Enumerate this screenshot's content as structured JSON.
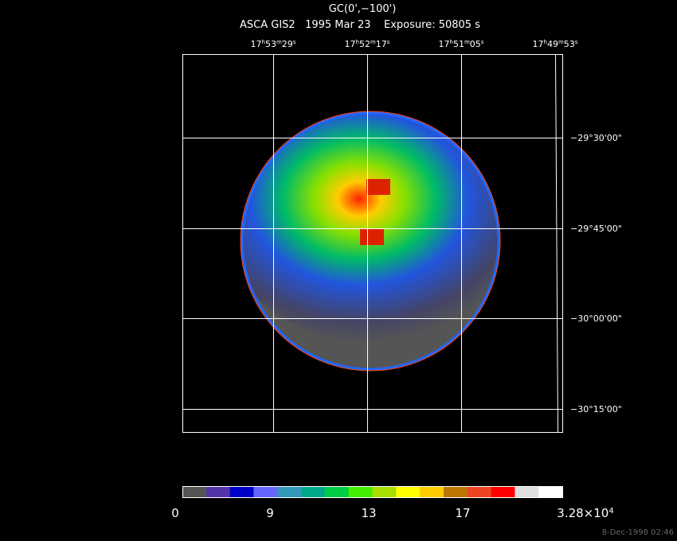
{
  "header": {
    "title": "GC(0',−100')",
    "subtitle": "ASCA GIS2   1995 Mar 23    Exposure: 50805 s"
  },
  "ra_labels": [
    [
      "17",
      "h",
      "53",
      "m",
      "29",
      "s"
    ],
    [
      "17",
      "h",
      "52",
      "m",
      "17",
      "s"
    ],
    [
      "17",
      "h",
      "51",
      "m",
      "05",
      "s"
    ],
    [
      "17",
      "h",
      "49",
      "m",
      "53",
      "s"
    ]
  ],
  "dec_labels": [
    "−29°30'00\"",
    "−29°45'00\"",
    "−30°00'00\"",
    "−30°15'00\""
  ],
  "colorbar": {
    "colors": [
      "#555555",
      "#5533aa",
      "#0000cc",
      "#6666ff",
      "#3399bb",
      "#00aa88",
      "#00cc44",
      "#44ee00",
      "#aadd00",
      "#ffff00",
      "#ffcc00",
      "#bb7700",
      "#ee4422",
      "#ff0000",
      "#e0e0e0",
      "#ffffff"
    ],
    "labels": [
      [
        "0"
      ],
      [
        "9"
      ],
      [
        "13"
      ],
      [
        "17"
      ],
      [
        "3.28×10",
        "4"
      ]
    ]
  },
  "footer": {
    "timestamp": "8-Dec-1998 02:46"
  }
}
